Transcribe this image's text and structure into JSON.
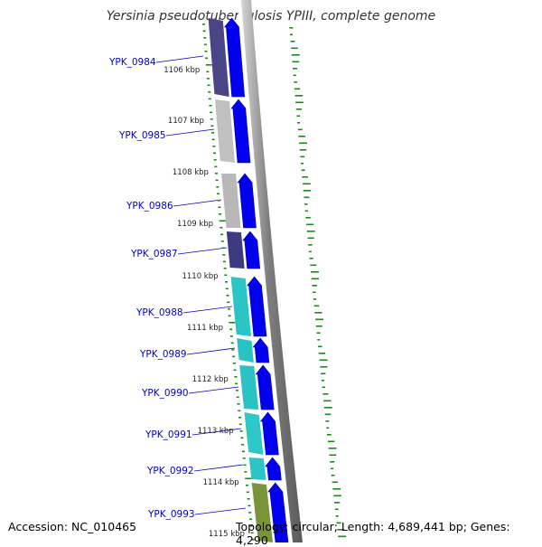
{
  "title": "Yersinia pseudotuberculosis YPIII, complete genome",
  "footer": {
    "accession": "Accession: NC_010465",
    "summary": "Topology: circular; Length: 4,689,441 bp; Genes: 4,290"
  },
  "scale_labels": [
    "1106 kbp",
    "1107 kbp",
    "1108 kbp",
    "1109 kbp",
    "1110 kbp",
    "1111 kbp",
    "1112 kbp",
    "1113 kbp",
    "1114 kbp",
    "1115 kbp"
  ],
  "genes": [
    {
      "label": "YPK_0984",
      "color": "#4a4585"
    },
    {
      "label": "YPK_0985",
      "color": "#c0c0c0"
    },
    {
      "label": "YPK_0986",
      "color": "#b8b8b8"
    },
    {
      "label": "YPK_0987",
      "color": "#3c3a80"
    },
    {
      "label": "YPK_0988",
      "color": "#2ac6c6"
    },
    {
      "label": "YPK_0989",
      "color": "#28c4c4"
    },
    {
      "label": "YPK_0990",
      "color": "#2ac2c2"
    },
    {
      "label": "YPK_0991",
      "color": "#2ec8c8"
    },
    {
      "label": "YPK_0992",
      "color": "#2cc4c4"
    },
    {
      "label": "YPK_0993",
      "color": "#7a9438"
    }
  ],
  "colors": {
    "cds_arrow": "#0000ee",
    "backbone": "#808080",
    "gc_plot": "#1a8a1a",
    "gene_label": "#0000cc"
  }
}
